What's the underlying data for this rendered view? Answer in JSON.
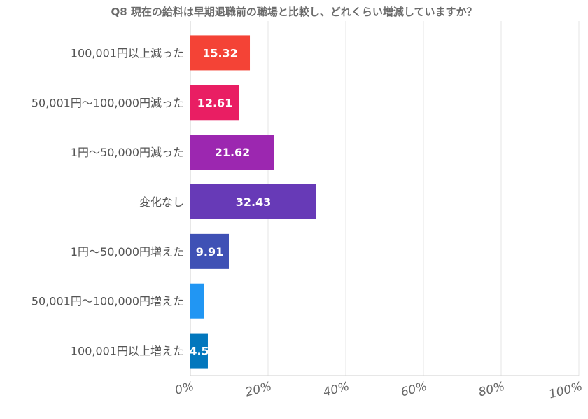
{
  "chart_data": {
    "type": "bar",
    "orientation": "horizontal",
    "title": "Q8 現在の給料は早期退職前の職場と比較し、どれくらい増減していますか？",
    "categories": [
      "100,001円以上減った",
      "50,001円～100,000円減った",
      "1円～50,000円減った",
      "変化なし",
      "1円～50,000円増えた",
      "50,001円～100,000円増えた",
      "100,001円以上増えた"
    ],
    "values": [
      15.32,
      12.61,
      21.62,
      32.43,
      9.91,
      3.6,
      4.5
    ],
    "value_labels": [
      "15.32",
      "12.61",
      "21.62",
      "32.43",
      "9.91",
      "",
      "4.5"
    ],
    "colors": [
      "#f44336",
      "#e91e63",
      "#9c27b0",
      "#673ab7",
      "#3f51b5",
      "#2196f3",
      "#0277bd"
    ],
    "xlim": [
      0,
      100
    ],
    "x_ticks": [
      "0%",
      "20%",
      "40%",
      "60%",
      "80%",
      "100%"
    ],
    "x_tick_values": [
      0,
      20,
      40,
      60,
      80,
      100
    ],
    "grid": true,
    "legend": "none"
  }
}
